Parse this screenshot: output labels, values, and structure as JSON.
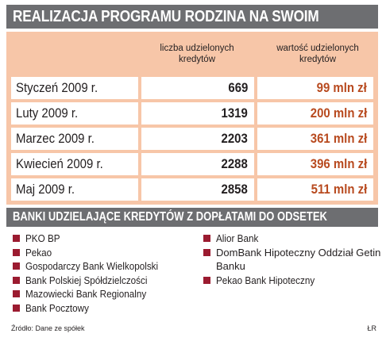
{
  "title": "REALIZACJA PROGRAMU RODZINA NA SWOIM",
  "table": {
    "col_count_header": "liczba udzielonych kredytów",
    "col_value_header": "wartość udzielonych kredytów",
    "rows": [
      {
        "month": "Styczeń 2009 r.",
        "count": "669",
        "value": "99 mln zł"
      },
      {
        "month": "Luty 2009 r.",
        "count": "1319",
        "value": "200 mln zł"
      },
      {
        "month": "Marzec 2009 r.",
        "count": "2203",
        "value": "361 mln zł"
      },
      {
        "month": "Kwiecień 2009 r.",
        "count": "2288",
        "value": "396 mln zł"
      },
      {
        "month": "Maj 2009 r.",
        "count": "2858",
        "value": "511 mln zł"
      }
    ]
  },
  "banks_section_title": "BANKI UDZIELAJĄCE KREDYTÓW Z DOPŁATAMI DO ODSETEK",
  "banks_left": [
    "PKO BP",
    "Pekao",
    "Gospodarczy Bank Wielkopolski",
    "Bank Polskiej Spółdzielczości",
    "Mazowiecki Bank Regionalny",
    "Bank Pocztowy"
  ],
  "banks_right": [
    "Alior Bank",
    "DomBank Hipoteczny Oddział Getin Banku",
    "Pekao Bank Hipoteczny"
  ],
  "source": "Źródło: Dane ze spółek",
  "author": "ŁR",
  "colors": {
    "header_bar": "#6d6e71",
    "table_background": "#f7c6a8",
    "value_text": "#b84a1f",
    "bullet": "#9b1b30"
  }
}
